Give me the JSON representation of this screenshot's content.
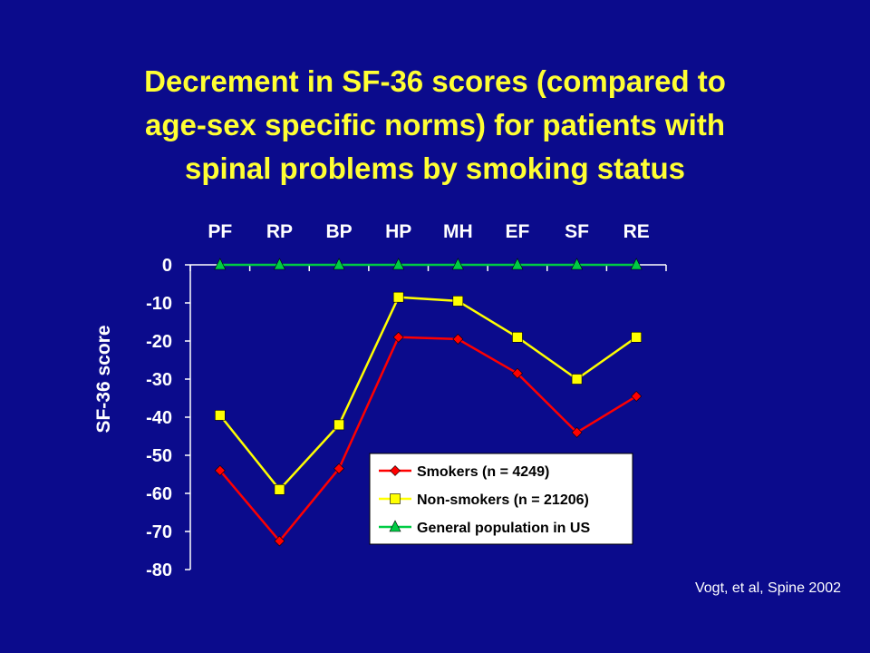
{
  "slide": {
    "title_lines": [
      "Decrement in SF-36 scores (compared to",
      "age-sex specific norms) for patients with",
      "spinal problems by smoking status"
    ],
    "citation": "Vogt, et al, Spine 2002"
  },
  "chart_data": {
    "type": "line",
    "title": "Decrement in SF-36 scores (compared to age-sex specific norms) for patients with spinal problems by smoking status",
    "categories": [
      "PF",
      "RP",
      "BP",
      "HP",
      "MH",
      "EF",
      "SF",
      "RE"
    ],
    "category_axis_position": "top",
    "ylabel": "SF-36 score",
    "xlabel": "",
    "ylim": [
      -80,
      0
    ],
    "yticks": [
      0,
      -10,
      -20,
      -30,
      -40,
      -50,
      -60,
      -70,
      -80
    ],
    "grid": false,
    "legend_position": "inside-bottom-right",
    "series": [
      {
        "name": "Smokers (n = 4249)",
        "color": "#ff0000",
        "marker": "diamond",
        "values": [
          -54,
          -72.5,
          -53.5,
          -19,
          -19.5,
          -28.5,
          -44,
          -34.5
        ]
      },
      {
        "name": "Non-smokers (n = 21206)",
        "color": "#ffff00",
        "marker": "square",
        "values": [
          -39.5,
          -59,
          -42,
          -8.5,
          -9.5,
          -19,
          -30,
          -19
        ]
      },
      {
        "name": "General population in US",
        "color": "#00cc44",
        "marker": "triangle",
        "values": [
          0,
          0,
          0,
          0,
          0,
          0,
          0,
          0
        ]
      }
    ],
    "colors": {
      "background": "#0b0b8c",
      "title": "#ffff33",
      "axis_text": "#ffffff",
      "legend_bg": "#ffffff"
    }
  }
}
